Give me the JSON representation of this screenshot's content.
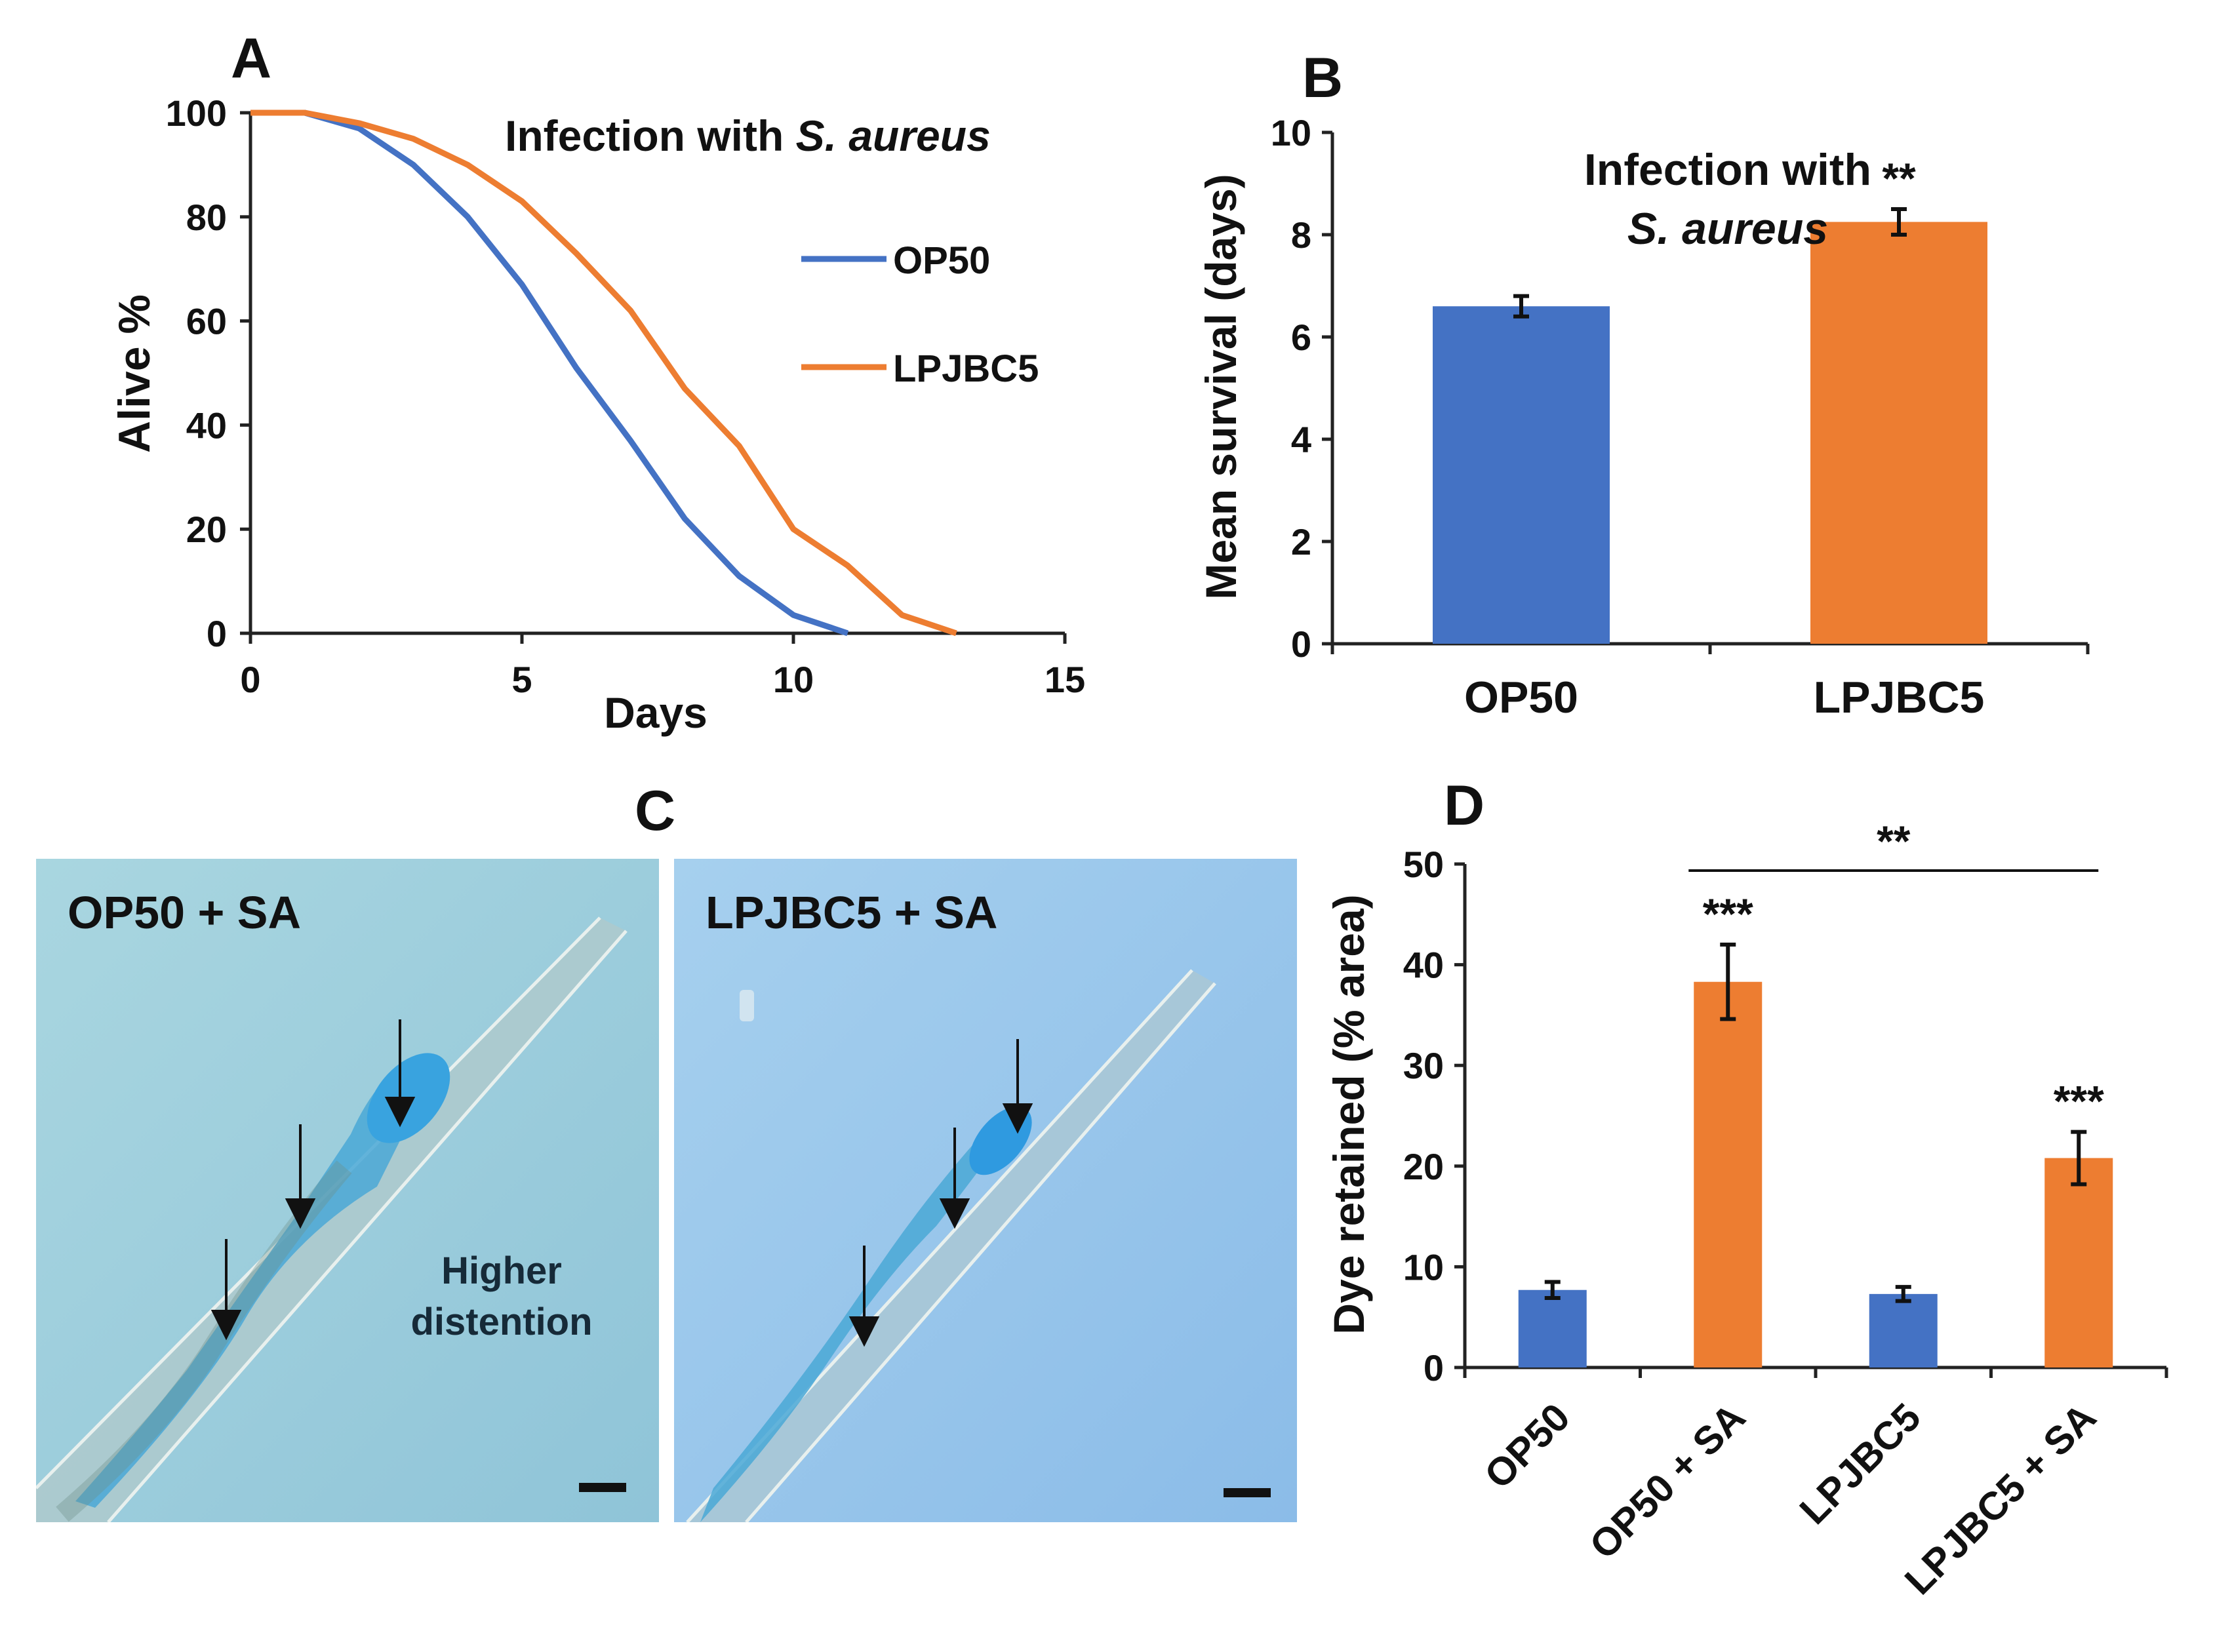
{
  "panel_labels": {
    "a": "A",
    "b": "B",
    "c": "C",
    "d": "D"
  },
  "chart_data": [
    {
      "panel": "A",
      "type": "line",
      "title": "Infection with ",
      "title_italic": "S. aureus",
      "xlabel": "Days",
      "ylabel": "Alive %",
      "xlim": [
        0,
        15
      ],
      "ylim": [
        0,
        100
      ],
      "xticks": [
        0,
        5,
        10,
        15
      ],
      "yticks": [
        0,
        20,
        40,
        60,
        80,
        100
      ],
      "legend_position": "right",
      "series": [
        {
          "name": "OP50",
          "color": "#4472c4",
          "x": [
            0,
            1,
            2,
            3,
            4,
            5,
            6,
            7,
            8,
            9,
            10,
            11
          ],
          "y": [
            100,
            100,
            97,
            90,
            80,
            67,
            51,
            37,
            22,
            11,
            3.5,
            0
          ]
        },
        {
          "name": "LPJBC5",
          "color": "#ed7d31",
          "x": [
            0,
            1,
            2,
            3,
            4,
            5,
            6,
            7,
            8,
            9,
            10,
            11,
            12,
            13
          ],
          "y": [
            100,
            100,
            98,
            95,
            90,
            83,
            73,
            62,
            47,
            36,
            20,
            13,
            3.5,
            0
          ]
        }
      ]
    },
    {
      "panel": "B",
      "type": "bar",
      "title_line1": "Infection with",
      "title_line2": "S. aureus",
      "ylabel": "Mean survival (days)",
      "ylim": [
        0,
        10
      ],
      "yticks": [
        0,
        2,
        4,
        6,
        8,
        10
      ],
      "categories": [
        "OP50",
        "LPJBC5"
      ],
      "values": [
        6.6,
        8.25
      ],
      "errors": [
        0.2,
        0.25
      ],
      "colors": [
        "#4472c4",
        "#ed7d31"
      ],
      "annotations": [
        "",
        "**"
      ]
    },
    {
      "panel": "D",
      "type": "bar",
      "ylabel": "Dye retained (% area)",
      "ylim": [
        0,
        50
      ],
      "yticks": [
        0,
        10,
        20,
        30,
        40,
        50
      ],
      "categories": [
        "OP50",
        "OP50 + SA",
        "LPJBC5",
        "LPJBC5 + SA"
      ],
      "values": [
        7.7,
        38.3,
        7.3,
        20.8
      ],
      "errors": [
        0.8,
        3.7,
        0.7,
        2.6
      ],
      "colors": [
        "#4472c4",
        "#ed7d31",
        "#4472c4",
        "#ed7d31"
      ],
      "annotations": [
        "",
        "***",
        "",
        "***"
      ],
      "bracket": {
        "from": 1,
        "to": 3,
        "label": "**"
      }
    }
  ],
  "micrographs": [
    {
      "label": "OP50 + SA",
      "note_line1": "Higher",
      "note_line2": "distention"
    },
    {
      "label": "LPJBC5 + SA"
    }
  ]
}
